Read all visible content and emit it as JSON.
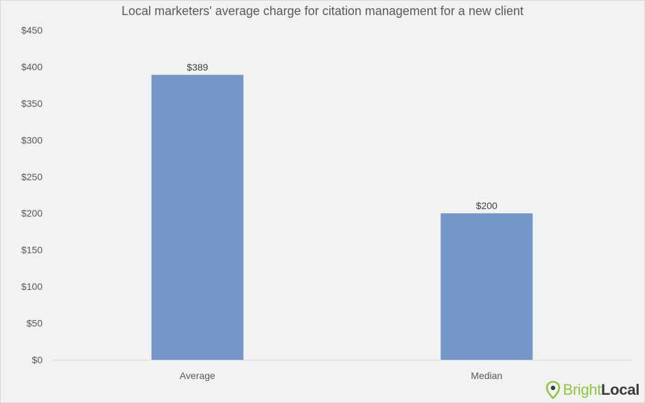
{
  "chart_data": {
    "type": "bar",
    "title": "Local marketers' average charge for citation management for a new client",
    "categories": [
      "Average",
      "Median"
    ],
    "values": [
      389,
      200
    ],
    "data_labels": [
      "$389",
      "$200"
    ],
    "y_ticks": [
      "$0",
      "$50",
      "$100",
      "$150",
      "$200",
      "$250",
      "$300",
      "$350",
      "$400",
      "$450"
    ],
    "ylim": [
      0,
      450
    ],
    "grid": false,
    "legend": "none",
    "bar_color": "#7496c8"
  },
  "brand": {
    "part1": "Bright",
    "part2": "Local",
    "icon": "map-pin-icon"
  }
}
